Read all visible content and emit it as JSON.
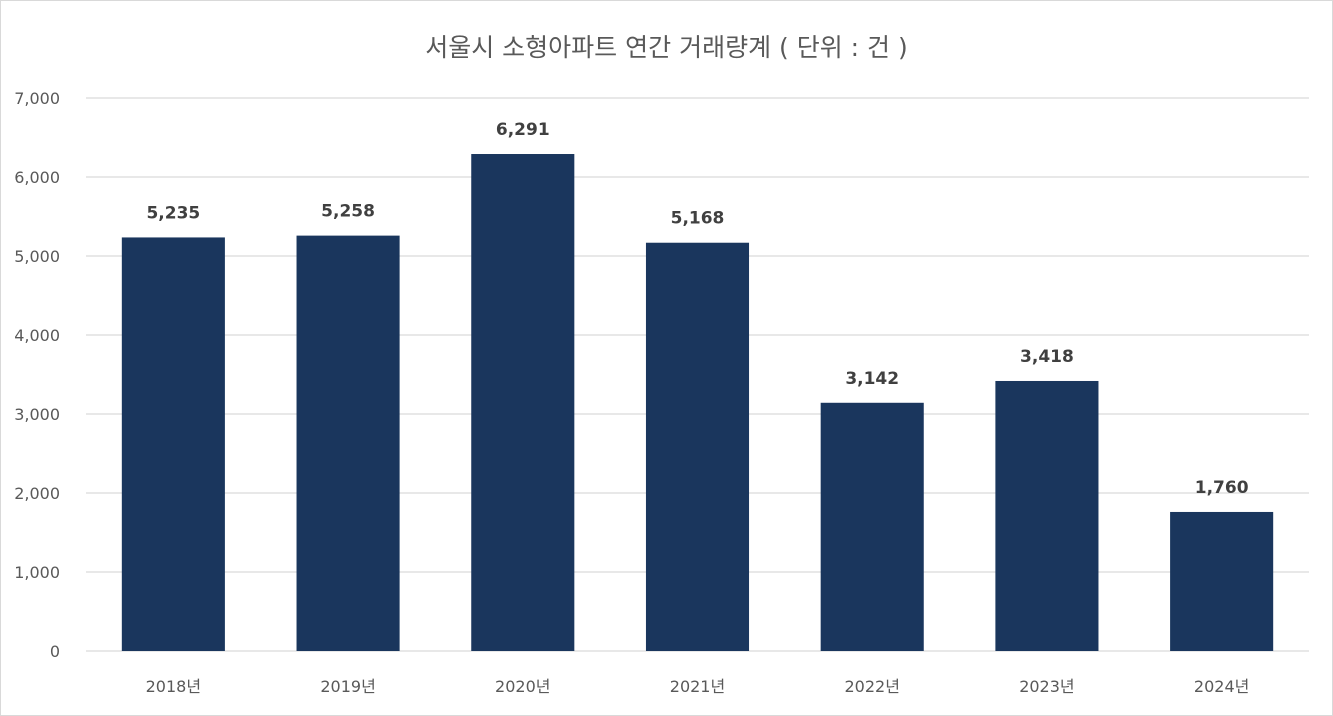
{
  "chart_data": {
    "type": "bar",
    "title": "서울시 소형아파트 연간 거래량계 ( 단위 : 건 )",
    "xlabel": "",
    "ylabel": "",
    "categories": [
      "2018년",
      "2019년",
      "2020년",
      "2021년",
      "2022년",
      "2023년",
      "2024년"
    ],
    "series": [
      {
        "values": [
          5235,
          5258,
          6291,
          5168,
          3142,
          3418,
          1760
        ],
        "data_labels": [
          "5,235",
          "5,258",
          "6,291",
          "5,168",
          "3,142",
          "3,418",
          "1,760"
        ],
        "color": "#1a365d"
      }
    ],
    "ylim": [
      0,
      7000
    ],
    "y_ticks": [
      0,
      1000,
      2000,
      3000,
      4000,
      5000,
      6000,
      7000
    ],
    "y_tick_labels": [
      "0",
      "1,000",
      "2,000",
      "3,000",
      "4,000",
      "5,000",
      "6,000",
      "7,000"
    ],
    "grid": true,
    "gridline_color": "#d9d9d9",
    "legend": "none"
  }
}
